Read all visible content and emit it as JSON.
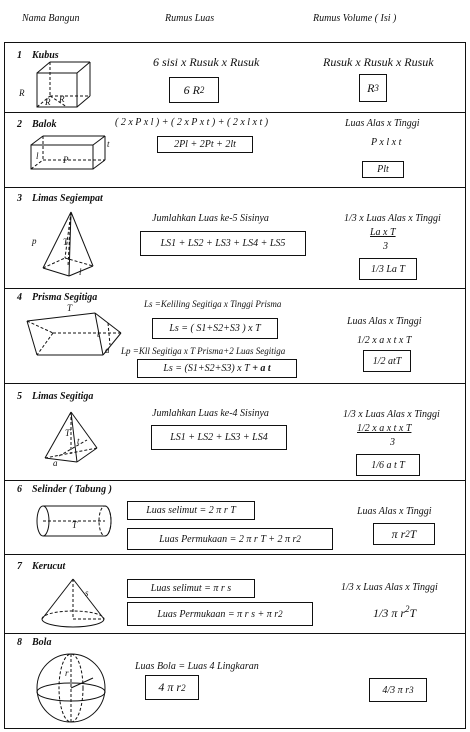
{
  "header": {
    "col1": "Nama Bangun",
    "col2": "Rumus Luas",
    "col3": "Rumus Volume ( Isi )"
  },
  "rows": [
    {
      "num": "1",
      "name": "Kubus",
      "area_text": "6 sisi x Rusuk x Rusuk",
      "area_box": "6 R",
      "vol_text": "Rusuk x Rusuk x Rusuk",
      "vol_box": "R",
      "labels": [
        "R",
        "R",
        "R"
      ]
    },
    {
      "num": "2",
      "name": "Balok",
      "area_text": "( 2 x P x l ) + ( 2 x P x t ) + ( 2 x l x t )",
      "area_box": "2Pl + 2Pt + 2lt",
      "vol_text": "Luas Alas x Tinggi",
      "vol_text2": "P x l x t",
      "vol_box": "Plt",
      "labels": [
        "l",
        "P",
        "t"
      ]
    },
    {
      "num": "3",
      "name": "Limas Segiempat",
      "area_text": "Jumlahkan Luas ke-5 Sisinya",
      "area_box": "LS1 + LS2 + LS3 + LS4 + LS5",
      "vol_text": "1/3 x Luas Alas x Tinggi",
      "vol_num": "La x T",
      "vol_den": "3",
      "vol_box": "1/3 La T",
      "labels": [
        "p",
        "T",
        "l"
      ]
    },
    {
      "num": "4",
      "name": "Prisma Segitiga",
      "area_text": "Ls =Keliling Segitiga x Tinggi Prisma",
      "area_box": "Ls = (  S1+S2+S3  ) x T",
      "area_text2": "Lp =Kll Segitiga x T Prisma+2 Luas Segitiga",
      "area_box2_main": "Ls =  (S1+S2+S3) x T",
      "area_box2_bold": "+ a t",
      "vol_text": "Luas Alas x Tinggi",
      "vol_text2": "1/2 x a x t x T",
      "vol_box": "1/2 atT",
      "labels": [
        "T",
        "t",
        "a"
      ]
    },
    {
      "num": "5",
      "name": "Limas Segitiga",
      "area_text": "Jumlahkan Luas ke-4 Sisinya",
      "area_box": "LS1 + LS2 + LS3 + LS4",
      "vol_text": "1/3 x Luas Alas x Tinggi",
      "vol_num": "1/2 x a x t x T",
      "vol_den": "3",
      "vol_box": "1/6 a t T",
      "labels": [
        "T",
        "t",
        "a"
      ]
    },
    {
      "num": "6",
      "name": "Selinder ( Tabung )",
      "area_box": "Luas selimut = 2 π r T",
      "area_box2": "Luas Permukaan = 2 π r T + 2 π r",
      "vol_text": "Luas Alas x Tinggi",
      "vol_box": "π r",
      "vol_box_tail": "T",
      "labels": [
        "T"
      ]
    },
    {
      "num": "7",
      "name": "Kerucut",
      "area_box": "Luas selimut =  π r s",
      "area_box2": "Luas Permukaan =  π r s +  π r",
      "vol_text": "1/3 x Luas Alas x Tinggi",
      "vol_box": "1/3  π r",
      "vol_box_tail": "T",
      "labels": [
        "s"
      ]
    },
    {
      "num": "8",
      "name": "Bola",
      "area_text": "Luas Bola = Luas 4 Lingkaran",
      "area_box": "4 π r",
      "vol_box": "4/3  π r",
      "labels": [
        "r"
      ]
    }
  ],
  "sup": {
    "two": "2",
    "three": "3"
  }
}
